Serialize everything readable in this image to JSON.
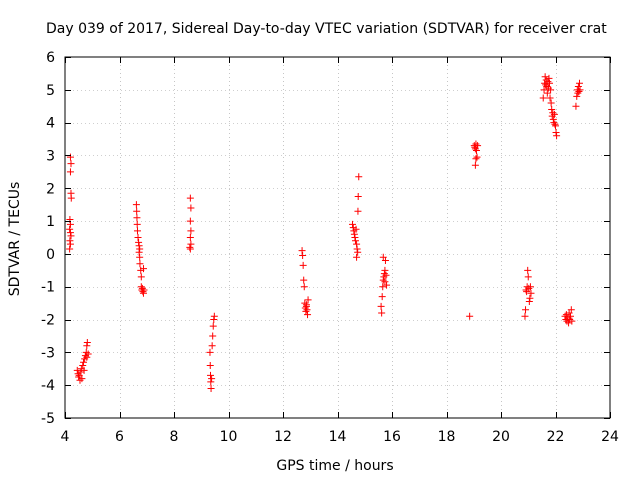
{
  "chart_data": {
    "type": "scatter",
    "title": "Day 039 of 2017, Sidereal Day-to-day VTEC variation (SDTVAR) for receiver crat",
    "xlabel": "GPS time / hours",
    "ylabel": "SDTVAR / TECUs",
    "xlim": [
      4,
      24
    ],
    "ylim": [
      -5,
      6
    ],
    "xticks": [
      4,
      6,
      8,
      10,
      12,
      14,
      16,
      18,
      20,
      22,
      24
    ],
    "yticks": [
      -5,
      -4,
      -3,
      -2,
      -1,
      0,
      1,
      2,
      3,
      4,
      5,
      6
    ],
    "grid": true,
    "marker": "+",
    "series": [
      {
        "name": "SDTVAR",
        "color": "#ff0000",
        "points": [
          [
            4.2,
            2.95
          ],
          [
            4.22,
            2.75
          ],
          [
            4.2,
            2.5
          ],
          [
            4.22,
            1.85
          ],
          [
            4.23,
            1.7
          ],
          [
            4.18,
            1.05
          ],
          [
            4.2,
            0.9
          ],
          [
            4.17,
            0.75
          ],
          [
            4.2,
            0.65
          ],
          [
            4.22,
            0.55
          ],
          [
            4.18,
            0.4
          ],
          [
            4.2,
            0.3
          ],
          [
            4.17,
            0.15
          ],
          [
            4.45,
            -3.55
          ],
          [
            4.48,
            -3.65
          ],
          [
            4.5,
            -3.75
          ],
          [
            4.52,
            -3.7
          ],
          [
            4.55,
            -3.85
          ],
          [
            4.58,
            -3.6
          ],
          [
            4.6,
            -3.5
          ],
          [
            4.62,
            -3.8
          ],
          [
            4.65,
            -3.4
          ],
          [
            4.68,
            -3.3
          ],
          [
            4.7,
            -3.55
          ],
          [
            4.72,
            -3.2
          ],
          [
            4.75,
            -3.1
          ],
          [
            4.78,
            -3.0
          ],
          [
            4.8,
            -3.15
          ],
          [
            4.8,
            -2.8
          ],
          [
            4.82,
            -2.7
          ],
          [
            4.85,
            -3.05
          ],
          [
            6.62,
            1.5
          ],
          [
            6.63,
            1.3
          ],
          [
            6.64,
            1.1
          ],
          [
            6.65,
            0.9
          ],
          [
            6.66,
            0.7
          ],
          [
            6.68,
            0.5
          ],
          [
            6.7,
            0.35
          ],
          [
            6.72,
            0.25
          ],
          [
            6.74,
            0.15
          ],
          [
            6.72,
            0.05
          ],
          [
            6.74,
            -0.1
          ],
          [
            6.75,
            -0.3
          ],
          [
            6.78,
            -0.5
          ],
          [
            6.8,
            -0.7
          ],
          [
            6.8,
            -1.0
          ],
          [
            6.82,
            -1.1
          ],
          [
            6.84,
            -1.05
          ],
          [
            6.86,
            -1.15
          ],
          [
            6.88,
            -1.2
          ],
          [
            6.9,
            -1.1
          ],
          [
            6.88,
            -0.45
          ],
          [
            8.58,
            0.2
          ],
          [
            8.6,
            0.15
          ],
          [
            8.62,
            0.3
          ],
          [
            8.6,
            0.5
          ],
          [
            8.62,
            0.7
          ],
          [
            8.6,
            1.0
          ],
          [
            8.62,
            1.4
          ],
          [
            8.6,
            1.7
          ],
          [
            9.32,
            -3.0
          ],
          [
            9.33,
            -3.4
          ],
          [
            9.34,
            -3.7
          ],
          [
            9.35,
            -3.9
          ],
          [
            9.36,
            -4.1
          ],
          [
            9.38,
            -3.8
          ],
          [
            9.4,
            -2.8
          ],
          [
            9.42,
            -2.5
          ],
          [
            9.44,
            -2.2
          ],
          [
            9.46,
            -2.0
          ],
          [
            9.48,
            -1.9
          ],
          [
            12.7,
            0.1
          ],
          [
            12.72,
            -0.05
          ],
          [
            12.74,
            -0.35
          ],
          [
            12.76,
            -0.8
          ],
          [
            12.78,
            -1.0
          ],
          [
            12.8,
            -1.5
          ],
          [
            12.82,
            -1.65
          ],
          [
            12.84,
            -1.75
          ],
          [
            12.86,
            -1.6
          ],
          [
            12.88,
            -1.7
          ],
          [
            12.9,
            -1.85
          ],
          [
            12.92,
            -1.4
          ],
          [
            12.86,
            -1.55
          ],
          [
            14.55,
            0.9
          ],
          [
            14.58,
            0.8
          ],
          [
            14.6,
            0.7
          ],
          [
            14.62,
            0.6
          ],
          [
            14.64,
            0.5
          ],
          [
            14.66,
            0.4
          ],
          [
            14.68,
            0.75
          ],
          [
            14.7,
            0.3
          ],
          [
            14.72,
            0.15
          ],
          [
            14.74,
            0.05
          ],
          [
            14.7,
            -0.1
          ],
          [
            14.75,
            1.3
          ],
          [
            14.76,
            1.75
          ],
          [
            14.78,
            2.35
          ],
          [
            15.6,
            -1.6
          ],
          [
            15.62,
            -1.8
          ],
          [
            15.64,
            -1.3
          ],
          [
            15.66,
            -1.0
          ],
          [
            15.68,
            -0.8
          ],
          [
            15.7,
            -0.7
          ],
          [
            15.72,
            -0.6
          ],
          [
            15.74,
            -0.5
          ],
          [
            15.76,
            -0.2
          ],
          [
            15.68,
            -0.1
          ],
          [
            15.78,
            -0.65
          ],
          [
            15.8,
            -0.95
          ],
          [
            15.74,
            -0.85
          ],
          [
            18.85,
            -1.9
          ],
          [
            19.02,
            3.3
          ],
          [
            19.04,
            3.25
          ],
          [
            19.06,
            3.2
          ],
          [
            19.08,
            3.35
          ],
          [
            19.1,
            3.15
          ],
          [
            19.12,
            2.95
          ],
          [
            19.08,
            2.9
          ],
          [
            19.06,
            2.7
          ],
          [
            19.14,
            3.3
          ],
          [
            20.88,
            -1.9
          ],
          [
            20.9,
            -1.7
          ],
          [
            20.92,
            -1.1
          ],
          [
            20.94,
            -1.15
          ],
          [
            20.96,
            -1.0
          ],
          [
            20.98,
            -0.5
          ],
          [
            21.0,
            -0.7
          ],
          [
            21.02,
            -1.05
          ],
          [
            21.04,
            -1.45
          ],
          [
            21.06,
            -1.35
          ],
          [
            21.08,
            -1.0
          ],
          [
            21.1,
            -1.2
          ],
          [
            21.55,
            4.75
          ],
          [
            21.58,
            5.0
          ],
          [
            21.6,
            5.2
          ],
          [
            21.62,
            5.4
          ],
          [
            21.64,
            5.15
          ],
          [
            21.66,
            5.3
          ],
          [
            21.68,
            5.1
          ],
          [
            21.7,
            4.9
          ],
          [
            21.72,
            5.25
          ],
          [
            21.74,
            5.05
          ],
          [
            21.76,
            5.35
          ],
          [
            21.78,
            5.2
          ],
          [
            21.8,
            4.75
          ],
          [
            21.82,
            5.0
          ],
          [
            21.84,
            4.6
          ],
          [
            21.86,
            4.4
          ],
          [
            21.88,
            4.2
          ],
          [
            21.9,
            4.3
          ],
          [
            21.92,
            4.1
          ],
          [
            21.94,
            4.0
          ],
          [
            21.96,
            4.25
          ],
          [
            21.98,
            3.95
          ],
          [
            22.0,
            3.9
          ],
          [
            22.02,
            3.7
          ],
          [
            22.04,
            3.6
          ],
          [
            22.35,
            -1.9
          ],
          [
            22.38,
            -2.0
          ],
          [
            22.4,
            -1.85
          ],
          [
            22.42,
            -2.05
          ],
          [
            22.45,
            -1.95
          ],
          [
            22.48,
            -2.1
          ],
          [
            22.5,
            -1.8
          ],
          [
            22.52,
            -2.0
          ],
          [
            22.55,
            -1.9
          ],
          [
            22.58,
            -1.7
          ],
          [
            22.6,
            -2.05
          ],
          [
            22.75,
            4.5
          ],
          [
            22.78,
            4.8
          ],
          [
            22.8,
            5.0
          ],
          [
            22.82,
            4.9
          ],
          [
            22.84,
            5.1
          ],
          [
            22.86,
            4.95
          ],
          [
            22.88,
            5.2
          ],
          [
            22.9,
            5.0
          ]
        ]
      }
    ]
  }
}
